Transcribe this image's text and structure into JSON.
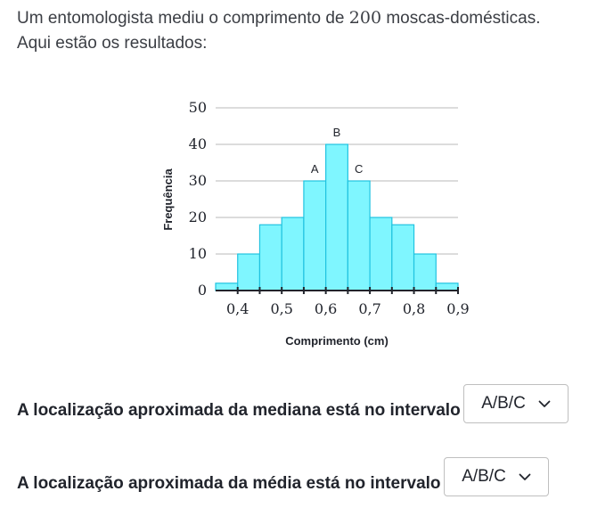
{
  "intro": {
    "line1_before": "Um entomologista mediu o comprimento de ",
    "count": "200",
    "line1_after": " moscas-domésticas.",
    "line2": "Aqui estão os resultados:"
  },
  "chart_data": {
    "type": "bar",
    "xlabel": "Comprimento (cm)",
    "ylabel": "Frequência",
    "ylim": [
      0,
      50
    ],
    "y_ticks": [
      "0",
      "10",
      "20",
      "30",
      "40",
      "50"
    ],
    "x_ticks": [
      "0,4",
      "0,5",
      "0,6",
      "0,7",
      "0,8",
      "0,9"
    ],
    "grid": true,
    "bin_width": 0.05,
    "bins": [
      {
        "start": 0.35,
        "end": 0.4,
        "value": 2,
        "label": ""
      },
      {
        "start": 0.4,
        "end": 0.45,
        "value": 10,
        "label": ""
      },
      {
        "start": 0.45,
        "end": 0.5,
        "value": 18,
        "label": ""
      },
      {
        "start": 0.5,
        "end": 0.55,
        "value": 20,
        "label": ""
      },
      {
        "start": 0.55,
        "end": 0.6,
        "value": 30,
        "label": "A"
      },
      {
        "start": 0.6,
        "end": 0.65,
        "value": 40,
        "label": "B"
      },
      {
        "start": 0.65,
        "end": 0.7,
        "value": 30,
        "label": "C"
      },
      {
        "start": 0.7,
        "end": 0.75,
        "value": 20,
        "label": ""
      },
      {
        "start": 0.75,
        "end": 0.8,
        "value": 18,
        "label": ""
      },
      {
        "start": 0.8,
        "end": 0.85,
        "value": 10,
        "label": ""
      },
      {
        "start": 0.85,
        "end": 0.9,
        "value": 2,
        "label": ""
      }
    ],
    "bar_color": "#7ff6ff",
    "bar_stroke": "#21c3e0"
  },
  "questions": [
    {
      "text": "A localização aproximada da mediana está no intervalo",
      "dropdown": "A/B/C"
    },
    {
      "text": "A localização aproximada da média está no intervalo",
      "dropdown": "A/B/C"
    }
  ]
}
